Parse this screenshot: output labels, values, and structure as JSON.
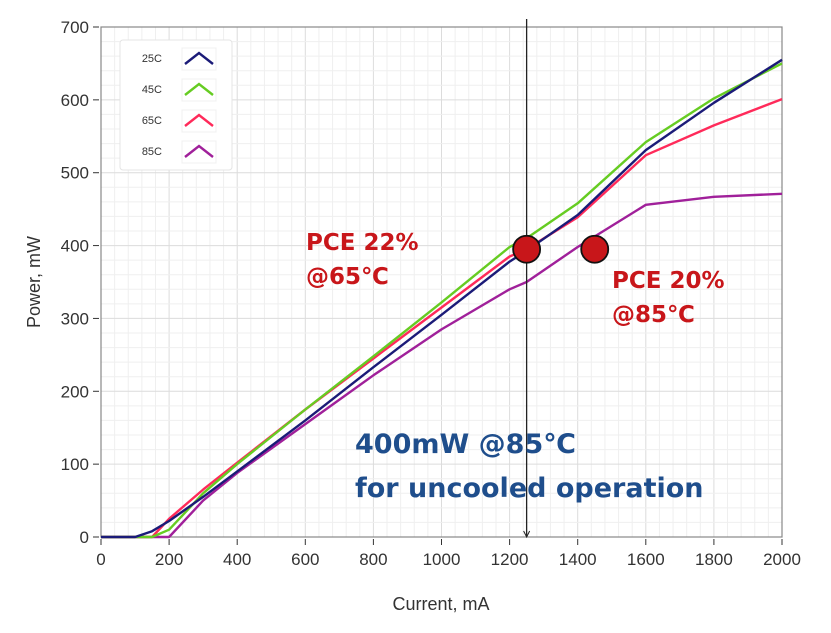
{
  "chart_data": {
    "type": "line",
    "title": "",
    "xlabel": "Current, mA",
    "ylabel": "Power, mW",
    "xlim": [
      0,
      2000
    ],
    "ylim": [
      0,
      700
    ],
    "xticks": [
      0,
      200,
      400,
      600,
      800,
      1000,
      1200,
      1400,
      1600,
      1800,
      2000
    ],
    "yticks": [
      0,
      100,
      200,
      300,
      400,
      500,
      600,
      700
    ],
    "grid": true,
    "legend_position": "top-left",
    "x": [
      0,
      100,
      150,
      200,
      300,
      400,
      600,
      800,
      1000,
      1200,
      1250,
      1400,
      1600,
      1800,
      2000
    ],
    "series": [
      {
        "name": "25C",
        "color": "#1b1b78",
        "values": [
          0,
          0,
          8,
          22,
          55,
          90,
          160,
          233,
          305,
          378,
          393,
          442,
          531,
          596,
          655
        ]
      },
      {
        "name": "45C",
        "color": "#66cc22",
        "values": [
          0,
          0,
          0,
          10,
          60,
          100,
          175,
          248,
          322,
          398,
          410,
          458,
          542,
          602,
          650
        ]
      },
      {
        "name": "65C",
        "color": "#ff2a5a",
        "values": [
          0,
          0,
          0,
          25,
          65,
          102,
          175,
          245,
          315,
          385,
          395,
          439,
          524,
          565,
          601
        ]
      },
      {
        "name": "85C",
        "color": "#a0209a",
        "values": [
          0,
          0,
          0,
          0,
          50,
          88,
          155,
          222,
          285,
          340,
          350,
          398,
          456,
          467,
          471
        ]
      }
    ],
    "marker_line": {
      "x": 1250
    },
    "markers": [
      {
        "x": 1250,
        "y": 395,
        "color": "#c8161a"
      },
      {
        "x": 1450,
        "y": 395,
        "color": "#c8161a"
      }
    ],
    "annotations": [
      {
        "lines": [
          "PCE 22%",
          "@65℃"
        ],
        "color": "#c8161a"
      },
      {
        "lines": [
          "PCE 20%",
          "@85℃"
        ],
        "color": "#c8161a"
      },
      {
        "lines": [
          "400mW @85℃",
          "for uncooled operation"
        ],
        "color": "#1f4e8c"
      }
    ]
  }
}
